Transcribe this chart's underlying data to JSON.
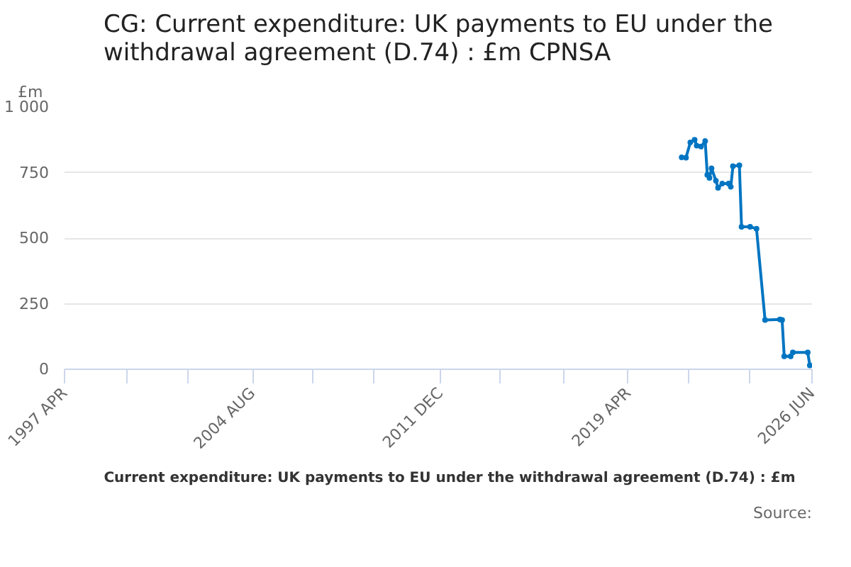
{
  "chart_data": {
    "type": "line",
    "title": "CG: Current expenditure: UK payments to EU under the withdrawal agreement (D.74) : £m CPNSA",
    "ylabel": "£m",
    "xlim": [
      "1997-04",
      "2026-06"
    ],
    "xticks": [
      {
        "value": "1997-04",
        "label": "1997 APR"
      },
      {
        "value": "1999-09",
        "label": null
      },
      {
        "value": "2002-02",
        "label": null
      },
      {
        "value": "2004-08",
        "label": "2004 AUG"
      },
      {
        "value": "2006-12",
        "label": null
      },
      {
        "value": "2009-05",
        "label": null
      },
      {
        "value": "2011-12",
        "label": "2011 DEC"
      },
      {
        "value": "2014-04",
        "label": null
      },
      {
        "value": "2016-10",
        "label": null
      },
      {
        "value": "2019-04",
        "label": "2019 APR"
      },
      {
        "value": "2021-08",
        "label": null
      },
      {
        "value": "2024-01",
        "label": null
      },
      {
        "value": "2026-06",
        "label": "2026 JUN"
      }
    ],
    "ylim": [
      0,
      1000
    ],
    "yticks": [
      0,
      250,
      500,
      750,
      {
        "value": 1000,
        "label": "1 000"
      }
    ],
    "grid": "y",
    "legend": "bottom",
    "marker": "circle",
    "line_style": "solid",
    "x": [
      "2021-05",
      "2021-07",
      "2021-09",
      "2021-11",
      "2021-12",
      "2022-02",
      "2022-04",
      "2022-05",
      "2022-06",
      "2022-07",
      "2022-09",
      "2022-10",
      "2022-12",
      "2023-03",
      "2023-04",
      "2023-05",
      "2023-08",
      "2023-09",
      "2024-01",
      "2024-04",
      "2024-08",
      "2025-03",
      "2025-04",
      "2025-05",
      "2025-08",
      "2025-09",
      "2026-04",
      "2026-05"
    ],
    "series": [
      {
        "name": "Current expenditure: UK payments to EU under the withdrawal agreement (D.74) : £m",
        "color": "#0075c2",
        "values": [
          808,
          807,
          865,
          875,
          853,
          849,
          870,
          741,
          730,
          766,
          719,
          692,
          708,
          708,
          696,
          774,
          778,
          543,
          543,
          536,
          188,
          190,
          188,
          49,
          49,
          64,
          64,
          15
        ]
      }
    ],
    "annotations": [
      "Source:"
    ]
  }
}
